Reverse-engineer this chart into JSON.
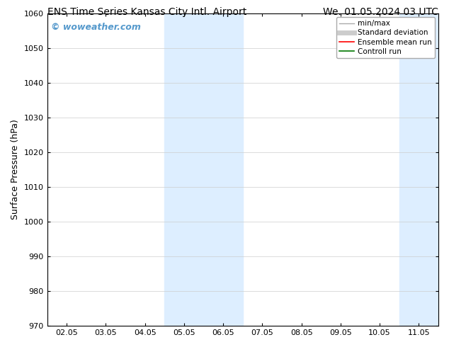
{
  "title_left": "ENS Time Series Kansas City Intl. Airport",
  "title_right": "We. 01.05.2024 03 UTC",
  "ylabel": "Surface Pressure (hPa)",
  "ylim": [
    970,
    1060
  ],
  "yticks": [
    970,
    980,
    990,
    1000,
    1010,
    1020,
    1030,
    1040,
    1050,
    1060
  ],
  "xtick_labels": [
    "02.05",
    "03.05",
    "04.05",
    "05.05",
    "06.05",
    "07.05",
    "08.05",
    "09.05",
    "10.05",
    "11.05"
  ],
  "watermark": "© woweather.com",
  "watermark_color": "#5599cc",
  "bg_color": "#ffffff",
  "plot_bg_color": "#ffffff",
  "shaded_regions": [
    {
      "xstart": 2.5,
      "xend": 4.5,
      "color": "#ddeeff"
    },
    {
      "xstart": 8.5,
      "xend": 10.5,
      "color": "#ddeeff"
    }
  ],
  "legend_entries": [
    {
      "label": "min/max",
      "color": "#aaaaaa",
      "lw": 1.0,
      "style": "solid"
    },
    {
      "label": "Standard deviation",
      "color": "#cccccc",
      "lw": 5,
      "style": "solid"
    },
    {
      "label": "Ensemble mean run",
      "color": "#ff0000",
      "lw": 1.2,
      "style": "solid"
    },
    {
      "label": "Controll run",
      "color": "#007700",
      "lw": 1.2,
      "style": "solid"
    }
  ],
  "grid_color": "#cccccc",
  "grid_alpha": 0.8,
  "title_fontsize": 10,
  "tick_fontsize": 8,
  "ylabel_fontsize": 9,
  "watermark_fontsize": 9,
  "legend_fontsize": 7.5
}
